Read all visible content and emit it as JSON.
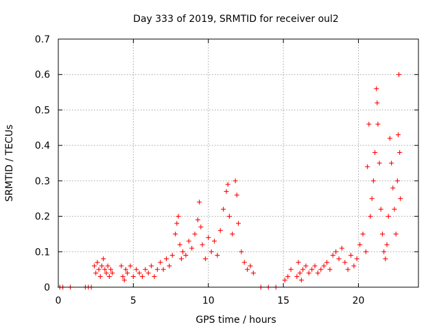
{
  "chart_data": {
    "type": "scatter",
    "title": "Day 333 of 2019, SRMTID for receiver oul2",
    "xlabel": "GPS time / hours",
    "ylabel": "SRMTID / TECUs",
    "xlim": [
      0,
      24
    ],
    "ylim": [
      0,
      0.7
    ],
    "xticks": [
      0,
      5,
      10,
      15,
      20
    ],
    "xtick_labels": [
      "0",
      "5",
      "10",
      "15",
      "20"
    ],
    "yticks": [
      0,
      0.1,
      0.2,
      0.3,
      0.4,
      0.5,
      0.6,
      0.7
    ],
    "ytick_labels": [
      "0",
      "0.1",
      "0.2",
      "0.3",
      "0.4",
      "0.5",
      "0.6",
      "0.7"
    ],
    "grid": true,
    "marker": "+",
    "series": [
      {
        "name": "SRMTID",
        "color": "#ff0000",
        "points": [
          [
            0.1,
            0
          ],
          [
            0.3,
            0
          ],
          [
            0.8,
            0
          ],
          [
            1.8,
            0
          ],
          [
            2.0,
            0
          ],
          [
            2.2,
            0
          ],
          [
            2.4,
            0.06
          ],
          [
            2.5,
            0.04
          ],
          [
            2.6,
            0.07
          ],
          [
            2.7,
            0.05
          ],
          [
            2.8,
            0.03
          ],
          [
            2.9,
            0.06
          ],
          [
            3.0,
            0.08
          ],
          [
            3.1,
            0.05
          ],
          [
            3.2,
            0.04
          ],
          [
            3.3,
            0.06
          ],
          [
            3.4,
            0.03
          ],
          [
            3.5,
            0.05
          ],
          [
            3.6,
            0.04
          ],
          [
            4.2,
            0.06
          ],
          [
            4.3,
            0.03
          ],
          [
            4.4,
            0.02
          ],
          [
            4.5,
            0.05
          ],
          [
            4.6,
            0.04
          ],
          [
            4.8,
            0.06
          ],
          [
            5.0,
            0.03
          ],
          [
            5.2,
            0.05
          ],
          [
            5.4,
            0.04
          ],
          [
            5.6,
            0.03
          ],
          [
            5.8,
            0.05
          ],
          [
            6.0,
            0.04
          ],
          [
            6.2,
            0.06
          ],
          [
            6.4,
            0.03
          ],
          [
            6.6,
            0.05
          ],
          [
            6.8,
            0.07
          ],
          [
            7.0,
            0.05
          ],
          [
            7.2,
            0.08
          ],
          [
            7.4,
            0.06
          ],
          [
            7.6,
            0.09
          ],
          [
            7.8,
            0.15
          ],
          [
            7.9,
            0.18
          ],
          [
            8.0,
            0.2
          ],
          [
            8.1,
            0.12
          ],
          [
            8.2,
            0.08
          ],
          [
            8.3,
            0.1
          ],
          [
            8.5,
            0.09
          ],
          [
            8.7,
            0.13
          ],
          [
            8.9,
            0.11
          ],
          [
            9.1,
            0.15
          ],
          [
            9.3,
            0.19
          ],
          [
            9.4,
            0.24
          ],
          [
            9.5,
            0.17
          ],
          [
            9.6,
            0.12
          ],
          [
            9.8,
            0.08
          ],
          [
            10.0,
            0.14
          ],
          [
            10.2,
            0.1
          ],
          [
            10.4,
            0.13
          ],
          [
            10.6,
            0.09
          ],
          [
            10.8,
            0.16
          ],
          [
            11.0,
            0.22
          ],
          [
            11.2,
            0.27
          ],
          [
            11.3,
            0.29
          ],
          [
            11.4,
            0.2
          ],
          [
            11.6,
            0.15
          ],
          [
            11.8,
            0.3
          ],
          [
            11.9,
            0.26
          ],
          [
            12.0,
            0.18
          ],
          [
            12.2,
            0.1
          ],
          [
            12.4,
            0.07
          ],
          [
            12.6,
            0.05
          ],
          [
            12.8,
            0.06
          ],
          [
            13.0,
            0.04
          ],
          [
            13.5,
            0
          ],
          [
            14.0,
            0
          ],
          [
            14.5,
            0
          ],
          [
            15.1,
            0.02
          ],
          [
            15.3,
            0.03
          ],
          [
            15.5,
            0.05
          ],
          [
            15.9,
            0.03
          ],
          [
            16.0,
            0.07
          ],
          [
            16.1,
            0.04
          ],
          [
            16.2,
            0.02
          ],
          [
            16.3,
            0.05
          ],
          [
            16.5,
            0.06
          ],
          [
            16.7,
            0.04
          ],
          [
            16.9,
            0.05
          ],
          [
            17.1,
            0.06
          ],
          [
            17.3,
            0.04
          ],
          [
            17.5,
            0.05
          ],
          [
            17.7,
            0.06
          ],
          [
            17.9,
            0.07
          ],
          [
            18.1,
            0.05
          ],
          [
            18.3,
            0.09
          ],
          [
            18.5,
            0.1
          ],
          [
            18.7,
            0.08
          ],
          [
            18.9,
            0.11
          ],
          [
            19.1,
            0.07
          ],
          [
            19.3,
            0.05
          ],
          [
            19.5,
            0.09
          ],
          [
            19.7,
            0.06
          ],
          [
            19.9,
            0.08
          ],
          [
            20.1,
            0.12
          ],
          [
            20.3,
            0.15
          ],
          [
            20.5,
            0.1
          ],
          [
            20.6,
            0.34
          ],
          [
            20.7,
            0.46
          ],
          [
            20.8,
            0.2
          ],
          [
            20.9,
            0.25
          ],
          [
            21.0,
            0.3
          ],
          [
            21.1,
            0.38
          ],
          [
            21.2,
            0.56
          ],
          [
            21.25,
            0.52
          ],
          [
            21.3,
            0.46
          ],
          [
            21.4,
            0.35
          ],
          [
            21.5,
            0.22
          ],
          [
            21.6,
            0.15
          ],
          [
            21.7,
            0.1
          ],
          [
            21.8,
            0.08
          ],
          [
            21.9,
            0.12
          ],
          [
            22.0,
            0.2
          ],
          [
            22.1,
            0.42
          ],
          [
            22.2,
            0.35
          ],
          [
            22.3,
            0.28
          ],
          [
            22.4,
            0.22
          ],
          [
            22.5,
            0.15
          ],
          [
            22.6,
            0.3
          ],
          [
            22.65,
            0.43
          ],
          [
            22.7,
            0.6
          ],
          [
            22.75,
            0.38
          ],
          [
            22.8,
            0.25
          ]
        ]
      }
    ]
  }
}
